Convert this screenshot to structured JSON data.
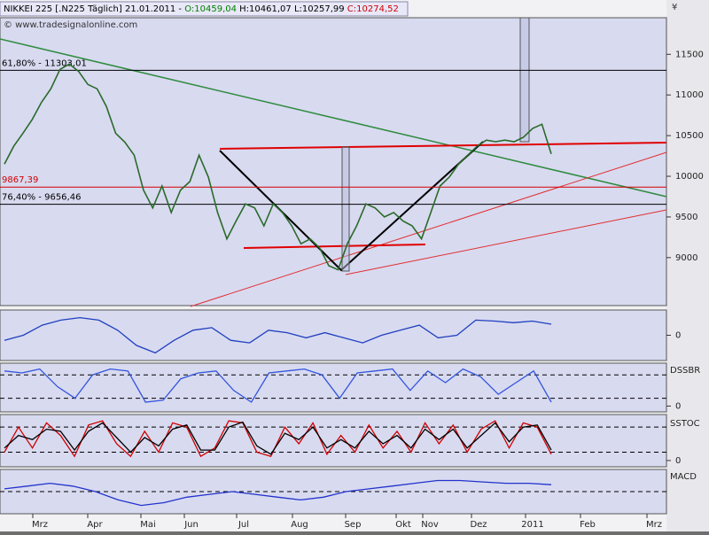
{
  "chart_data": [
    {
      "type": "line",
      "title_parts": [
        {
          "text": "NIKKEI 225 [.N225 Täglich] 21.01.2011 - ",
          "color": "#000000"
        },
        {
          "text": "O:10459,04",
          "color": "#008000"
        },
        {
          "text": " H:10461,07 L:10257,99 ",
          "color": "#000000"
        },
        {
          "text": "C:10274,52",
          "color": "#d00000"
        }
      ],
      "copyright": "© www.tradesignalonline.com",
      "y_axis_label": "¥",
      "ylim": [
        8410,
        11950
      ],
      "yticks": [
        9000,
        9500,
        10000,
        10500,
        11000,
        11500
      ],
      "hlines": [
        {
          "label": "61,80% - 11303,01",
          "value": 11303.01,
          "color": "#000000"
        },
        {
          "label": "9867,39",
          "value": 9867.39,
          "color": "#d00000"
        },
        {
          "label": "76,40% - 9656,46",
          "value": 9656.46,
          "color": "#000000"
        }
      ],
      "month_labels": [
        "Mrz",
        "Apr",
        "Mai",
        "Jun",
        "Jul",
        "Aug",
        "Sep",
        "Okt",
        "Nov",
        "Dez",
        "2011",
        "Feb",
        "Mrz"
      ],
      "color": "#2a6a2a",
      "values": [
        10150,
        10370,
        10530,
        10700,
        10910,
        11075,
        11315,
        11380,
        11290,
        11130,
        11075,
        10860,
        10530,
        10420,
        10260,
        9830,
        9610,
        9880,
        9555,
        9830,
        9935,
        10260,
        9990,
        9555,
        9230,
        9450,
        9660,
        9610,
        9390,
        9660,
        9555,
        9390,
        9170,
        9230,
        9120,
        8900,
        8850,
        9170,
        9390,
        9660,
        9610,
        9500,
        9555,
        9450,
        9390,
        9230,
        9555,
        9880,
        9990,
        10150,
        10260,
        10370,
        10445,
        10425,
        10445,
        10425,
        10480,
        10590,
        10640,
        10274.52
      ]
    },
    {
      "type": "line",
      "ylim": [
        -0.5,
        0.5
      ],
      "yticks": [
        0
      ],
      "color": "#1f3fbf",
      "values": [
        -0.1,
        0.0,
        0.2,
        0.3,
        0.35,
        0.3,
        0.1,
        -0.2,
        -0.35,
        -0.1,
        0.1,
        0.15,
        -0.1,
        -0.15,
        0.1,
        0.05,
        -0.05,
        0.05,
        -0.05,
        -0.15,
        0.0,
        0.1,
        0.2,
        -0.05,
        0.0,
        0.3,
        0.28,
        0.25,
        0.28,
        0.22
      ]
    },
    {
      "type": "line",
      "title": "DSSBR",
      "ylim": [
        -15,
        110
      ],
      "yticks": [
        0
      ],
      "levels": [
        20,
        80
      ],
      "color": "#3355dd",
      "values": [
        90,
        85,
        95,
        50,
        20,
        80,
        95,
        90,
        10,
        15,
        70,
        85,
        90,
        40,
        10,
        85,
        90,
        95,
        80,
        20,
        85,
        90,
        95,
        40,
        90,
        60,
        95,
        75,
        30,
        60,
        90,
        10
      ]
    },
    {
      "type": "line",
      "title": "SSTOC",
      "ylim": [
        -15,
        110
      ],
      "yticks": [
        0
      ],
      "levels": [
        20,
        80
      ],
      "series": [
        {
          "color": "#d00000",
          "values": [
            20,
            80,
            30,
            90,
            60,
            10,
            85,
            95,
            40,
            10,
            70,
            20,
            90,
            80,
            10,
            30,
            95,
            90,
            20,
            10,
            80,
            40,
            90,
            15,
            60,
            20,
            85,
            30,
            70,
            20,
            90,
            40,
            85,
            20,
            75,
            95,
            30,
            90,
            80,
            15
          ]
        },
        {
          "color": "#000000",
          "values": [
            30,
            60,
            50,
            75,
            70,
            25,
            70,
            90,
            55,
            20,
            55,
            35,
            75,
            85,
            25,
            25,
            80,
            92,
            35,
            15,
            65,
            50,
            80,
            30,
            50,
            30,
            70,
            40,
            60,
            30,
            75,
            50,
            75,
            30,
            60,
            90,
            45,
            80,
            85,
            25
          ]
        }
      ]
    },
    {
      "type": "line",
      "title": "MACD",
      "ylim": [
        -0.8,
        0.8
      ],
      "levels": [
        0
      ],
      "color": "#2233cc",
      "values": [
        0.1,
        0.2,
        0.3,
        0.2,
        0.0,
        -0.3,
        -0.5,
        -0.4,
        -0.2,
        -0.1,
        0.0,
        -0.1,
        -0.2,
        -0.3,
        -0.2,
        0.0,
        0.1,
        0.2,
        0.3,
        0.4,
        0.4,
        0.35,
        0.3,
        0.3,
        0.25
      ]
    }
  ]
}
